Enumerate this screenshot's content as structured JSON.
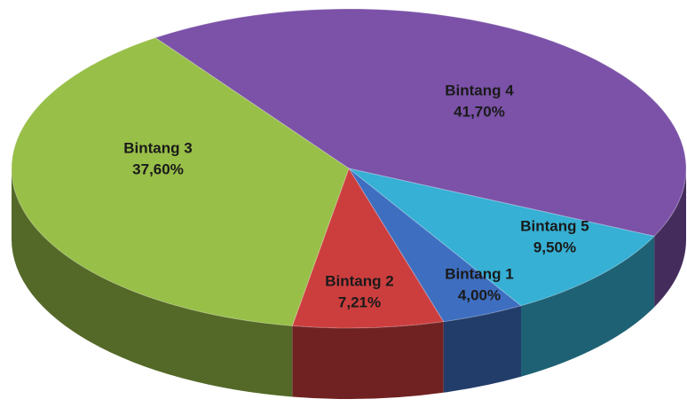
{
  "chart_data": {
    "type": "pie",
    "categories": [
      "Bintang 4",
      "Bintang 5",
      "Bintang 1",
      "Bintang 2",
      "Bintang 3"
    ],
    "values": [
      41.7,
      9.5,
      4.0,
      7.21,
      37.6
    ],
    "value_labels": [
      "41,70%",
      "9,50%",
      "4,00%",
      "7,21%",
      "37,60%"
    ],
    "colors": [
      "#7b52a8",
      "#36b0d4",
      "#3e6ec0",
      "#cc3e3e",
      "#98bf48"
    ]
  }
}
